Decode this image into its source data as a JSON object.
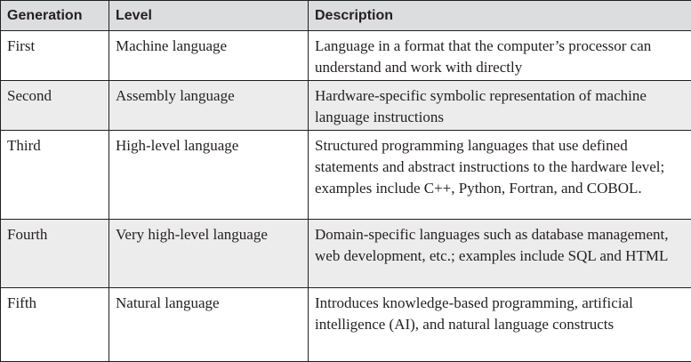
{
  "table": {
    "headers": [
      "Generation",
      "Level",
      "Description"
    ],
    "rows": [
      {
        "generation": "First",
        "level": "Machine language",
        "description": "Language in a format that the computer’s processor can understand and work with directly"
      },
      {
        "generation": "Second",
        "level": "Assembly language",
        "description": "Hardware-specific symbolic representation of machine language instructions"
      },
      {
        "generation": "Third",
        "level": "High-level language",
        "description": "Structured programming languages that use defined statements and abstract instructions to the hardware level; examples include C++, Python, Fortran, and COBOL."
      },
      {
        "generation": "Fourth",
        "level": "Very high-level language",
        "description": "Domain-specific languages such as database management, web development, etc.; examples include SQL and HTML"
      },
      {
        "generation": "Fifth",
        "level": "Natural language",
        "description": "Introduces knowledge-based programming, artificial intelligence (AI), and natural language constructs"
      }
    ]
  },
  "colors": {
    "header_bg": "#dcdddf",
    "shaded_row_bg": "#ececed",
    "border": "#231f20",
    "text": "#231f20"
  }
}
